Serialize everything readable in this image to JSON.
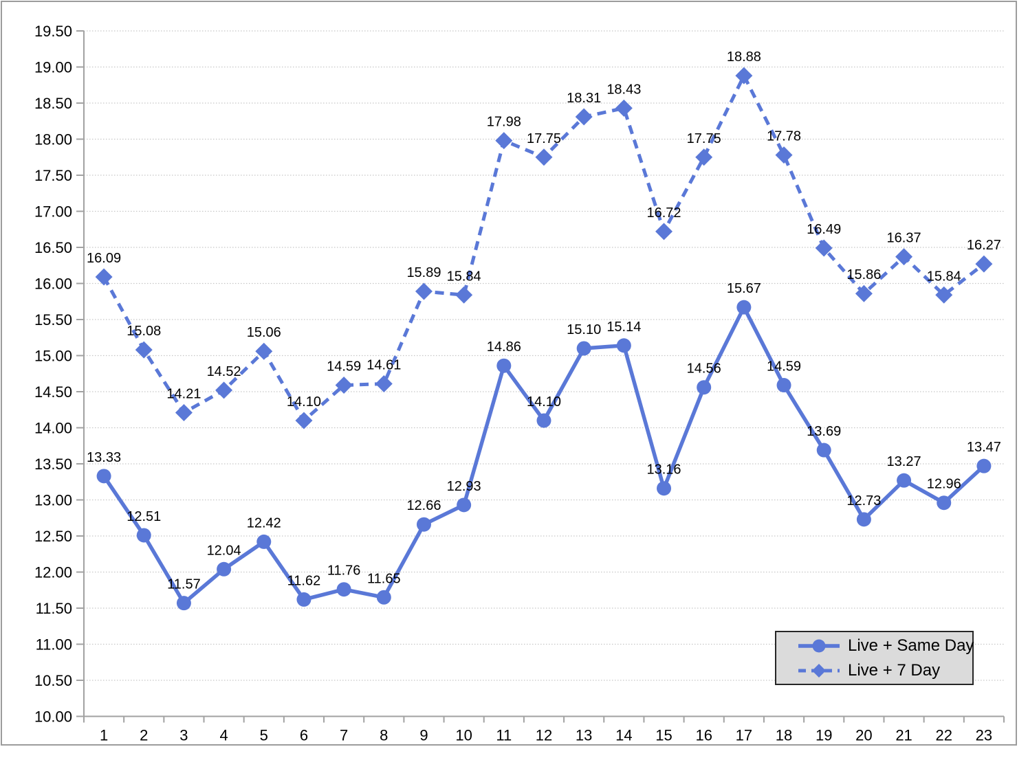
{
  "chart_data": {
    "type": "line",
    "title": "",
    "xlabel": "",
    "ylabel": "",
    "x_categories": [
      "1",
      "2",
      "3",
      "4",
      "5",
      "6",
      "7",
      "8",
      "9",
      "10",
      "11",
      "12",
      "13",
      "14",
      "15",
      "16",
      "17",
      "18",
      "19",
      "20",
      "21",
      "22",
      "23"
    ],
    "ylim": [
      10.0,
      19.5
    ],
    "ytick_step": 0.5,
    "ytick_decimals": 2,
    "grid": "horizontal dotted gridlines every 0.5",
    "legend_position": "inside bottom-right",
    "data_labels": true,
    "series": [
      {
        "name": "Live + Same Day",
        "line_style": "solid",
        "marker": "circle",
        "values": [
          13.33,
          12.51,
          11.57,
          12.04,
          12.42,
          11.62,
          11.76,
          11.65,
          12.66,
          12.93,
          14.86,
          14.1,
          15.1,
          15.14,
          13.16,
          14.56,
          15.67,
          14.59,
          13.69,
          12.73,
          13.27,
          12.96,
          13.47
        ]
      },
      {
        "name": "Live + 7 Day",
        "line_style": "dashed",
        "marker": "diamond",
        "values": [
          16.09,
          15.08,
          14.21,
          14.52,
          15.06,
          14.1,
          14.59,
          14.61,
          15.89,
          15.84,
          17.98,
          17.75,
          18.31,
          18.43,
          16.72,
          17.75,
          18.88,
          17.78,
          16.49,
          15.86,
          16.37,
          15.84,
          16.27
        ]
      }
    ]
  },
  "colors": {
    "series_blue": "#5A78D7",
    "data_label_text": "#000000",
    "tick_label_text": "#000000",
    "gridline": "#c6c6c6",
    "axis": "#a2a2a2",
    "legend_bg": "#dbdbdb",
    "legend_border": "#262626",
    "chart_border": "#9c9c9c",
    "background": "#ffffff"
  }
}
